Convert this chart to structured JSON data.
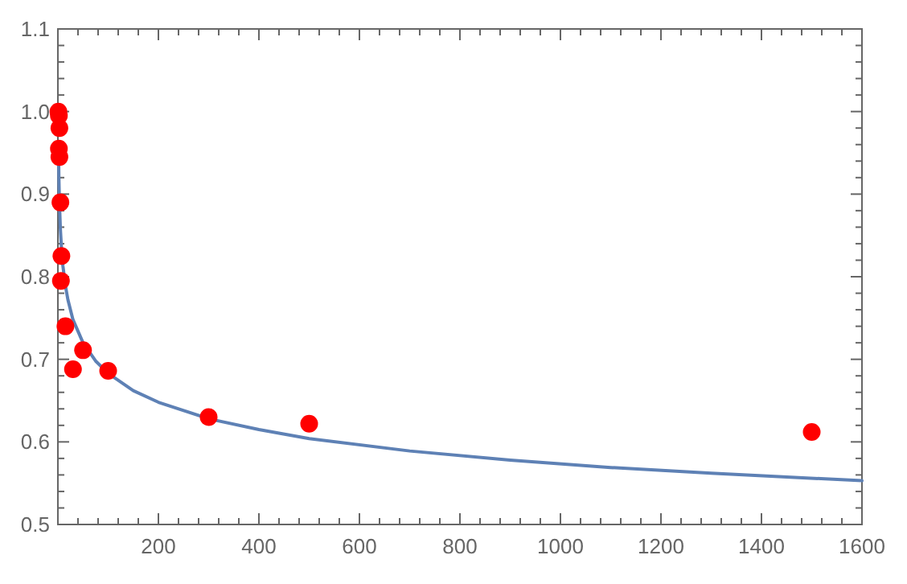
{
  "chart_data": {
    "type": "scatter",
    "xlim": [
      0,
      1600
    ],
    "ylim": [
      0.5,
      1.1
    ],
    "xticks": [
      200,
      400,
      600,
      800,
      1000,
      1200,
      1400,
      1600
    ],
    "yticks": [
      0.5,
      0.6,
      0.7,
      0.8,
      0.9,
      {
        "value": 1,
        "label": "1.0"
      },
      1.1
    ],
    "grid": false,
    "series": [
      {
        "type": "line",
        "color": "#5e81b5",
        "marker": "none",
        "line_style": "solid",
        "x": [
          1.5,
          2,
          3,
          5,
          7,
          10,
          15,
          20,
          30,
          50,
          75,
          100,
          150,
          200,
          300,
          400,
          500,
          700,
          900,
          1100,
          1300,
          1600
        ],
        "values": [
          0.94,
          0.919,
          0.891,
          0.857,
          0.836,
          0.813,
          0.789,
          0.772,
          0.748,
          0.72,
          0.698,
          0.683,
          0.662,
          0.648,
          0.628,
          0.615,
          0.604,
          0.589,
          0.578,
          0.569,
          0.562,
          0.553
        ]
      },
      {
        "color": "#ff0000",
        "marker": "circle",
        "x": [
          1,
          2,
          3,
          2,
          3,
          5,
          7,
          6,
          15,
          30,
          50,
          100,
          300,
          500,
          1500
        ],
        "values": [
          1.0,
          0.995,
          0.98,
          0.955,
          0.945,
          0.89,
          0.825,
          0.795,
          0.74,
          0.688,
          0.711,
          0.686,
          0.63,
          0.622,
          0.612
        ]
      }
    ]
  }
}
